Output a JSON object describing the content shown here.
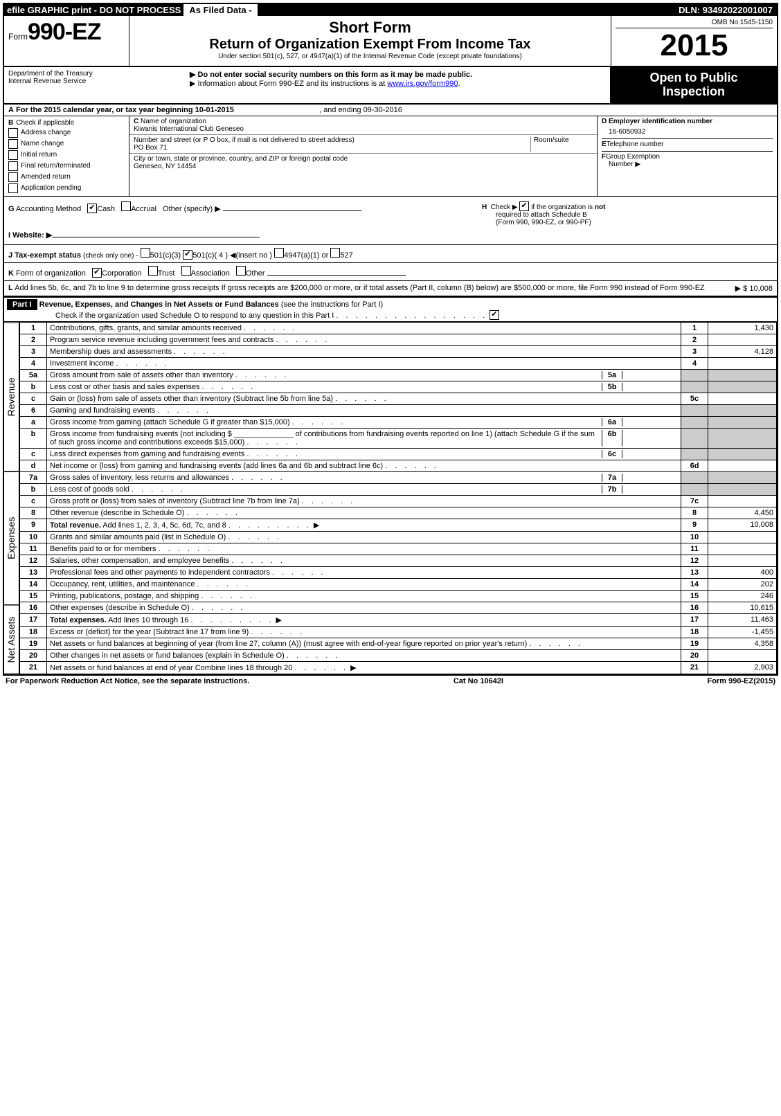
{
  "topbar": {
    "left": "efile GRAPHIC print - DO NOT PROCESS",
    "mid_label": "As Filed Data -",
    "dln": "DLN: 93492022001007"
  },
  "header": {
    "form_prefix": "Form",
    "form_number": "990-EZ",
    "dept1": "Department of the Treasury",
    "dept2": "Internal Revenue Service",
    "short_form": "Short Form",
    "title": "Return of Organization Exempt From Income Tax",
    "subtitle": "Under section 501(c), 527, or 4947(a)(1) of the Internal Revenue Code (except private foundations)",
    "warn1": "Do not enter social security numbers on this form as it may be made public.",
    "warn2_prefix": "Information about Form 990-EZ and its instructions is at ",
    "warn2_link": "www.irs.gov/form990",
    "warn2_suffix": ".",
    "omb": "OMB No 1545-1150",
    "year": "2015",
    "open1": "Open to Public",
    "open2": "Inspection"
  },
  "section_a": {
    "label_a": "A",
    "text": "For the 2015 calendar year, or tax year beginning 10-01-2015",
    "ending": ", and ending 09-30-2016"
  },
  "section_b": {
    "label": "B",
    "title": "Check if applicable",
    "items": [
      "Address change",
      "Name change",
      "Initial return",
      "Final return/terminated",
      "Amended return",
      "Application pending"
    ]
  },
  "section_c": {
    "label": "C",
    "name_label": "Name of organization",
    "name": "Kiwanis International Club Geneseo",
    "addr_label": "Number and street (or P O box, if mail is not delivered to street address)",
    "room_label": "Room/suite",
    "addr": "PO Box 71",
    "city_label": "City or town, state or province, country, and ZIP or foreign postal code",
    "city": "Geneseo, NY 14454"
  },
  "section_d": {
    "label": "D",
    "ein_label": "Employer identification number",
    "ein": "16-6050932",
    "label_e": "E",
    "tel_label": "Telephone number",
    "label_f": "F",
    "group_label": "Group Exemption",
    "group_label2": "Number  ▶"
  },
  "misc": {
    "g_label": "G",
    "g_text": "Accounting Method",
    "g_cash": "Cash",
    "g_accrual": "Accrual",
    "g_other": "Other (specify) ▶",
    "h_label": "H",
    "h_text_pre": "Check ▶",
    "h_text_post": "if the organization is",
    "h_not": "not",
    "h_text2": "required to attach Schedule B",
    "h_text3": "(Form 990, 990-EZ, or 990-PF)",
    "i_label": "I Website: ▶",
    "j_label": "J",
    "j_text": "Tax-exempt status",
    "j_small": "(check only one) -",
    "j_501c3": "501(c)(3)",
    "j_501c": "501(c)( 4 ) ◀(insert no )",
    "j_4947": "4947(a)(1) or",
    "j_527": "527",
    "k_label": "K",
    "k_text": "Form of organization",
    "k_corp": "Corporation",
    "k_trust": "Trust",
    "k_assoc": "Association",
    "k_other": "Other",
    "l_label": "L",
    "l_text": "Add lines 5b, 6c, and 7b to line 9 to determine gross receipts  If gross receipts are $200,000 or more, or if total assets (Part II, column (B) below) are $500,000 or more, file Form 990 instead of Form 990-EZ",
    "l_amount": "▶ $ 10,008"
  },
  "part1": {
    "header": "Part I",
    "title": "Revenue, Expenses, and Changes in Net Assets or Fund Balances",
    "title_note": "(see the instructions for Part I)",
    "check_text": "Check if the organization used Schedule O to respond to any question in this Part I"
  },
  "side_labels": {
    "revenue": "Revenue",
    "expenses": "Expenses",
    "netassets": "Net Assets"
  },
  "lines": {
    "1": {
      "n": "1",
      "d": "Contributions, gifts, grants, and similar amounts received",
      "box": "1",
      "amt": "1,430"
    },
    "2": {
      "n": "2",
      "d": "Program service revenue including government fees and contracts",
      "box": "2",
      "amt": ""
    },
    "3": {
      "n": "3",
      "d": "Membership dues and assessments",
      "box": "3",
      "amt": "4,128"
    },
    "4": {
      "n": "4",
      "d": "Investment income",
      "box": "4",
      "amt": ""
    },
    "5a": {
      "n": "5a",
      "d": "Gross amount from sale of assets other than inventory",
      "box": "5a"
    },
    "5b": {
      "n": "b",
      "d": "Less  cost or other basis and sales expenses",
      "box": "5b"
    },
    "5c": {
      "n": "c",
      "d": "Gain or (loss) from sale of assets other than inventory (Subtract line 5b from line 5a)",
      "box": "5c",
      "amt": ""
    },
    "6": {
      "n": "6",
      "d": "Gaming and fundraising events"
    },
    "6a": {
      "n": "a",
      "d": "Gross income from gaming (attach Schedule G if greater than $15,000)",
      "box": "6a"
    },
    "6b": {
      "n": "b",
      "d": "Gross income from fundraising events (not including $ ______________ of contributions from fundraising events reported on line 1) (attach Schedule G if the sum of such gross income and contributions exceeds $15,000)",
      "box": "6b"
    },
    "6c": {
      "n": "c",
      "d": "Less  direct expenses from gaming and fundraising events",
      "box": "6c"
    },
    "6d": {
      "n": "d",
      "d": "Net income or (loss) from gaming and fundraising events (add lines 6a and 6b and subtract line 6c)",
      "box": "6d",
      "amt": ""
    },
    "7a": {
      "n": "7a",
      "d": "Gross sales of inventory, less returns and allowances",
      "box": "7a"
    },
    "7b": {
      "n": "b",
      "d": "Less  cost of goods sold",
      "box": "7b"
    },
    "7c": {
      "n": "c",
      "d": "Gross profit or (loss) from sales of inventory (Subtract line 7b from line 7a)",
      "box": "7c",
      "amt": ""
    },
    "8": {
      "n": "8",
      "d": "Other revenue (describe in Schedule O)",
      "box": "8",
      "amt": "4,450"
    },
    "9": {
      "n": "9",
      "d": "Total revenue. Add lines 1, 2, 3, 4, 5c, 6d, 7c, and 8",
      "box": "9",
      "amt": "10,008",
      "bold": true,
      "arrow": true
    },
    "10": {
      "n": "10",
      "d": "Grants and similar amounts paid (list in Schedule O)",
      "box": "10",
      "amt": ""
    },
    "11": {
      "n": "11",
      "d": "Benefits paid to or for members",
      "box": "11",
      "amt": ""
    },
    "12": {
      "n": "12",
      "d": "Salaries, other compensation, and employee benefits",
      "box": "12",
      "amt": ""
    },
    "13": {
      "n": "13",
      "d": "Professional fees and other payments to independent contractors",
      "box": "13",
      "amt": "400"
    },
    "14": {
      "n": "14",
      "d": "Occupancy, rent, utilities, and maintenance",
      "box": "14",
      "amt": "202"
    },
    "15": {
      "n": "15",
      "d": "Printing, publications, postage, and shipping",
      "box": "15",
      "amt": "246"
    },
    "16": {
      "n": "16",
      "d": "Other expenses (describe in Schedule O)",
      "box": "16",
      "amt": "10,615"
    },
    "17": {
      "n": "17",
      "d": "Total expenses. Add lines 10 through 16",
      "box": "17",
      "amt": "11,463",
      "bold": true,
      "arrow": true
    },
    "18": {
      "n": "18",
      "d": "Excess or (deficit) for the year (Subtract line 17 from line 9)",
      "box": "18",
      "amt": "-1,455"
    },
    "19": {
      "n": "19",
      "d": "Net assets or fund balances at beginning of year (from line 27, column (A)) (must agree with end-of-year figure reported on prior year's return)",
      "box": "19",
      "amt": "4,358"
    },
    "20": {
      "n": "20",
      "d": "Other changes in net assets or fund balances (explain in Schedule O)",
      "box": "20",
      "amt": ""
    },
    "21": {
      "n": "21",
      "d": "Net assets or fund balances at end of year  Combine lines 18 through 20",
      "box": "21",
      "amt": "2,903",
      "arrow": true
    }
  },
  "footer": {
    "left": "For Paperwork Reduction Act Notice, see the separate instructions.",
    "mid": "Cat No 10642I",
    "right": "Form 990-EZ (2015)"
  }
}
